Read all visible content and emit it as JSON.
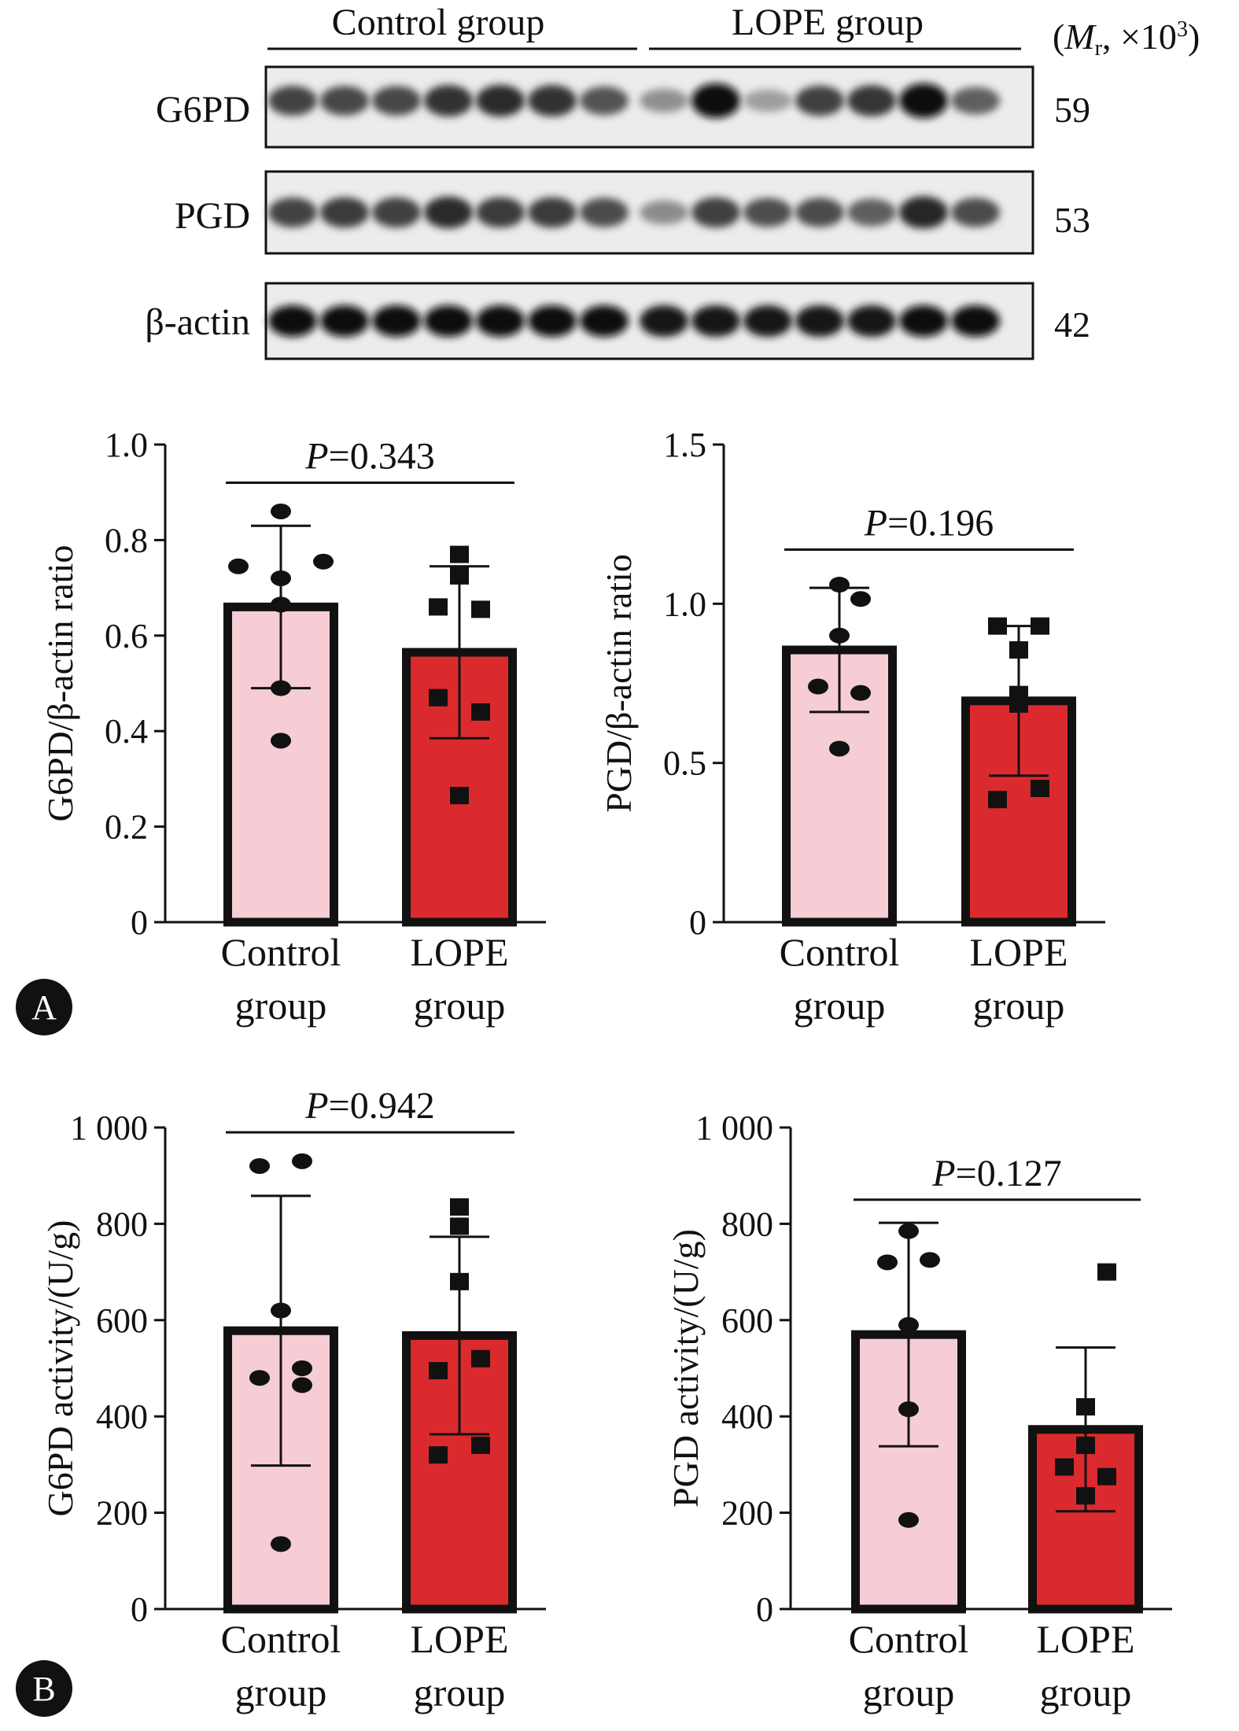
{
  "blot": {
    "groups": [
      "Control group",
      "LOPE group"
    ],
    "mw_header": "(Mr, ×10³)",
    "mw_header_parts": {
      "open": "(",
      "m": "M",
      "sub": "r",
      "rest": ", ×10",
      "sup": "3",
      "close": ")"
    },
    "rows": [
      {
        "protein": "G6PD",
        "mw": "59",
        "c_intensity": [
          0.7,
          0.68,
          0.68,
          0.8,
          0.82,
          0.8,
          0.62
        ],
        "l_intensity": [
          0.3,
          1.0,
          0.22,
          0.72,
          0.78,
          1.0,
          0.55
        ]
      },
      {
        "protein": "PGD",
        "mw": "53",
        "c_intensity": [
          0.7,
          0.74,
          0.72,
          0.82,
          0.74,
          0.74,
          0.66
        ],
        "l_intensity": [
          0.32,
          0.72,
          0.64,
          0.66,
          0.56,
          0.86,
          0.66
        ]
      },
      {
        "protein": "β-actin",
        "mw": "42",
        "c_intensity": [
          1,
          1,
          1,
          1,
          1,
          1,
          1
        ],
        "l_intensity": [
          0.95,
          0.95,
          0.95,
          0.95,
          0.95,
          1,
          1
        ]
      }
    ]
  },
  "panel_letters": [
    "A",
    "B"
  ],
  "colors": {
    "control": "#f6cdd5",
    "lope": "#db2a2e",
    "outline": "#111111"
  },
  "chart_data": [
    {
      "type": "bar",
      "ylabel": "G6PD/β-actin ratio",
      "categories": [
        "Control\ngroup",
        "LOPE\ngroup"
      ],
      "yticks": [
        0,
        0.2,
        0.4,
        0.6,
        0.8,
        1.0
      ],
      "ytick_labels": [
        "0",
        "0.2",
        "0.4",
        "0.6",
        "0.8",
        "1.0"
      ],
      "ylim": [
        0,
        1.0
      ],
      "values": [
        0.66,
        0.565
      ],
      "errors": [
        0.17,
        0.18
      ],
      "points": [
        [
          0.86,
          0.745,
          0.755,
          0.72,
          0.665,
          0.49,
          0.38
        ],
        [
          0.77,
          0.725,
          0.66,
          0.655,
          0.47,
          0.44,
          0.265
        ]
      ],
      "point_x": [
        [
          0,
          -0.4,
          0.4,
          0,
          0,
          0,
          0
        ],
        [
          0,
          0,
          -0.2,
          0.2,
          -0.2,
          0.2,
          0
        ]
      ],
      "p_prefix": "P",
      "p_value": "=0.343",
      "p_y": 0.92
    },
    {
      "type": "bar",
      "ylabel": "PGD/β-actin ratio",
      "categories": [
        "Control\ngroup",
        "LOPE\ngroup"
      ],
      "yticks": [
        0,
        0.5,
        1.0,
        1.5
      ],
      "ytick_labels": [
        "0",
        "0.5",
        "1.0",
        "1.5"
      ],
      "ylim": [
        0,
        1.5
      ],
      "values": [
        0.855,
        0.695
      ],
      "errors": [
        0.195,
        0.235
      ],
      "points": [
        [
          1.06,
          1.015,
          0.9,
          0.74,
          0.72,
          0.545
        ],
        [
          0.93,
          0.93,
          0.855,
          0.715,
          0.685,
          0.42,
          0.385
        ]
      ],
      "point_x": [
        [
          0,
          0.2,
          0,
          -0.2,
          0.2,
          0
        ],
        [
          -0.2,
          0.2,
          0,
          0,
          0,
          0.2,
          -0.2
        ]
      ],
      "p_prefix": "P",
      "p_value": "=0.196",
      "p_y": 1.17
    },
    {
      "type": "bar",
      "ylabel": "G6PD activity/(U/g)",
      "categories": [
        "Control\ngroup",
        "LOPE\ngroup"
      ],
      "yticks": [
        0,
        200,
        400,
        600,
        800,
        1000
      ],
      "ytick_labels": [
        "0",
        "200",
        "400",
        "600",
        "800",
        "1 000"
      ],
      "ylim": [
        0,
        1000
      ],
      "values": [
        578,
        568
      ],
      "errors": [
        280,
        205
      ],
      "points": [
        [
          920,
          930,
          620,
          480,
          500,
          465,
          135
        ],
        [
          835,
          795,
          680,
          520,
          495,
          340,
          320
        ]
      ],
      "point_x": [
        [
          -0.2,
          0.2,
          0,
          -0.2,
          0.2,
          0.2,
          0
        ],
        [
          0,
          0,
          0,
          0.2,
          -0.2,
          0.2,
          -0.2
        ]
      ],
      "p_prefix": "P",
      "p_value": "=0.942",
      "p_y": 990
    },
    {
      "type": "bar",
      "ylabel": "PGD activity/(U/g)",
      "categories": [
        "Control\ngroup",
        "LOPE\ngroup"
      ],
      "yticks": [
        0,
        200,
        400,
        600,
        800,
        1000
      ],
      "ytick_labels": [
        "0",
        "200",
        "400",
        "600",
        "800",
        "1 000"
      ],
      "ylim": [
        0,
        1000
      ],
      "values": [
        570,
        373
      ],
      "errors": [
        232,
        170
      ],
      "points": [
        [
          785,
          720,
          725,
          590,
          415,
          185
        ],
        [
          700,
          420,
          340,
          295,
          275,
          235
        ]
      ],
      "point_x": [
        [
          0,
          -0.2,
          0.2,
          0,
          0,
          0
        ],
        [
          0.2,
          0,
          0,
          -0.2,
          0.2,
          0
        ]
      ],
      "p_prefix": "P",
      "p_value": "=0.127",
      "p_y": 850
    }
  ]
}
